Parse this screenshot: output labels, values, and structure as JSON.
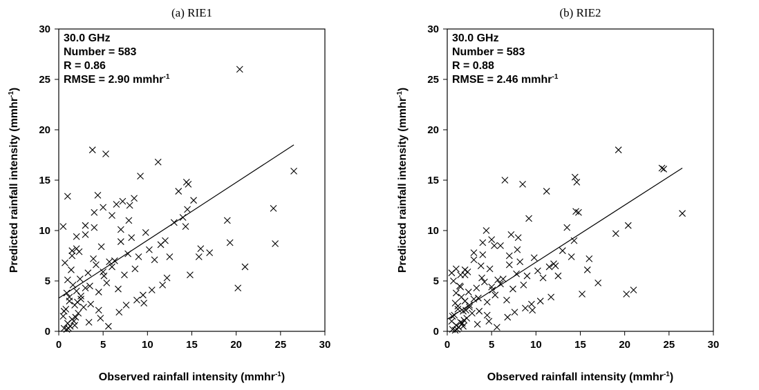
{
  "chart_data": [
    {
      "type": "scatter",
      "title": "(a) RIE1",
      "xlabel": {
        "main": "Observed rainfall intensity (mmhr",
        "sup": "-1",
        "end": ")"
      },
      "ylabel": {
        "main": "Predicted rainfall intensity (mmhr",
        "sup": "-1",
        "end": ")"
      },
      "xlim": [
        0,
        30
      ],
      "ylim": [
        0,
        30
      ],
      "xticks": [
        "0",
        "5",
        "10",
        "15",
        "20",
        "25",
        "30"
      ],
      "yticks": [
        "0",
        "5",
        "10",
        "15",
        "20",
        "25",
        "30"
      ],
      "annotation": {
        "line1": "30.0 GHz",
        "line2": "Number = 583",
        "line3": "R = 0.86",
        "line4_main": "RMSE = 2.90 mmhr",
        "line4_sup": "-1"
      },
      "fit_line": {
        "x": [
          0,
          26.5
        ],
        "y": [
          3.3,
          18.5
        ]
      },
      "x": [
        0.5,
        0.8,
        1.0,
        1.2,
        1.5,
        1.8,
        2.0,
        2.2,
        2.5,
        2.8,
        1.3,
        1.7,
        2.1,
        0.9,
        1.1,
        1.6,
        2.4,
        0.6,
        1.4,
        1.9,
        3.0,
        3.3,
        3.6,
        3.9,
        4.2,
        4.5,
        4.8,
        5.1,
        5.4,
        5.7,
        0.7,
        1.0,
        1.5,
        2.0,
        2.5,
        3.0,
        3.5,
        4.0,
        4.5,
        5.0,
        6.0,
        6.3,
        6.7,
        7.0,
        7.4,
        7.8,
        8.2,
        8.6,
        9.0,
        9.5,
        6.5,
        7.2,
        7.9,
        8.5,
        9.8,
        10.2,
        10.8,
        11.5,
        12.0,
        13.0,
        0.5,
        1.0,
        1.5,
        2.0,
        3.0,
        4.0,
        5.0,
        6.0,
        7.0,
        8.0,
        14.0,
        14.5,
        15.2,
        16.0,
        17.0,
        13.5,
        12.5,
        11.2,
        10.5,
        9.2,
        0.6,
        3.8,
        5.3,
        4.4,
        6.8,
        7.6,
        8.8,
        9.6,
        11.7,
        12.2,
        14.4,
        14.6,
        14.3,
        14.8,
        15.8,
        19.0,
        19.3,
        20.2,
        20.4,
        21.0,
        24.2,
        24.4,
        26.5,
        1.2,
        2.3,
        3.4,
        4.7,
        5.6,
        0.9,
        1.8
      ],
      "y": [
        1.5,
        2.2,
        0.8,
        3.0,
        1.2,
        2.6,
        4.0,
        1.8,
        3.5,
        2.4,
        0.5,
        1.0,
        2.9,
        3.8,
        0.3,
        4.6,
        5.2,
        2.0,
        6.1,
        1.4,
        4.3,
        5.8,
        2.7,
        7.2,
        6.6,
        3.9,
        8.4,
        5.5,
        4.8,
        6.9,
        6.8,
        5.1,
        7.5,
        8.2,
        3.2,
        9.6,
        4.5,
        10.3,
        2.1,
        5.9,
        6.4,
        7.0,
        4.2,
        8.9,
        5.6,
        7.7,
        9.3,
        6.2,
        7.4,
        3.6,
        12.6,
        12.9,
        11.0,
        13.2,
        9.8,
        8.1,
        7.1,
        8.6,
        9.0,
        10.8,
        10.4,
        13.4,
        8.0,
        9.4,
        10.5,
        11.8,
        12.3,
        11.5,
        10.1,
        12.5,
        11.3,
        12.1,
        13.0,
        8.2,
        7.8,
        13.9,
        7.4,
        16.8,
        4.1,
        15.4,
        0.3,
        18.0,
        17.6,
        13.5,
        1.9,
        2.6,
        3.1,
        2.8,
        4.6,
        5.3,
        14.8,
        14.6,
        10.4,
        5.6,
        7.4,
        11.0,
        8.8,
        4.3,
        26.0,
        6.4,
        12.2,
        8.7,
        15.9,
        3.4,
        7.9,
        0.9,
        1.3,
        0.5,
        0.2,
        0.6
      ]
    },
    {
      "type": "scatter",
      "title": "(b) RIE2",
      "xlabel": {
        "main": "Observed rainfall intensity (mmhr",
        "sup": "-1",
        "end": ")"
      },
      "ylabel": {
        "main": "Predicted rainfall intensity (mmhr",
        "sup": "-1",
        "end": ")"
      },
      "xlim": [
        0,
        30
      ],
      "ylim": [
        0,
        30
      ],
      "xticks": [
        "0",
        "5",
        "10",
        "15",
        "20",
        "25",
        "30"
      ],
      "yticks": [
        "0",
        "5",
        "10",
        "15",
        "20",
        "25",
        "30"
      ],
      "annotation": {
        "line1": "30.0 GHz",
        "line2": "Number = 583",
        "line3": "R = 0.88",
        "line4_main": "RMSE = 2.46 mmhr",
        "line4_sup": "-1"
      },
      "fit_line": {
        "x": [
          0,
          26.5
        ],
        "y": [
          1.2,
          16.2
        ]
      },
      "x": [
        0.5,
        0.8,
        1.0,
        1.2,
        1.5,
        1.8,
        2.0,
        2.2,
        2.5,
        2.8,
        1.3,
        1.7,
        2.1,
        0.9,
        1.1,
        1.6,
        2.4,
        0.6,
        1.4,
        1.9,
        3.0,
        3.3,
        3.6,
        3.9,
        4.2,
        4.5,
        4.8,
        5.1,
        5.4,
        5.7,
        0.7,
        1.0,
        1.5,
        2.0,
        2.5,
        3.0,
        3.5,
        4.0,
        4.5,
        5.0,
        6.0,
        6.3,
        6.7,
        7.0,
        7.4,
        7.8,
        8.2,
        8.6,
        9.0,
        9.5,
        6.5,
        7.2,
        7.9,
        8.5,
        9.8,
        10.2,
        10.8,
        11.5,
        12.0,
        13.0,
        0.5,
        1.0,
        1.5,
        2.0,
        3.0,
        4.0,
        5.0,
        6.0,
        7.0,
        8.0,
        14.0,
        14.5,
        15.2,
        16.0,
        17.0,
        13.5,
        12.5,
        11.2,
        10.5,
        9.2,
        0.6,
        3.8,
        5.3,
        4.4,
        6.8,
        7.6,
        8.8,
        9.6,
        11.7,
        12.2,
        14.4,
        14.6,
        14.3,
        14.8,
        15.8,
        19.0,
        19.3,
        20.2,
        20.4,
        21.0,
        24.2,
        24.4,
        26.5,
        1.2,
        2.3,
        3.4,
        4.7,
        5.6,
        0.9,
        1.8
      ],
      "y": [
        1.0,
        1.6,
        0.6,
        2.2,
        0.9,
        2.0,
        3.0,
        1.3,
        2.6,
        1.8,
        0.4,
        0.8,
        2.1,
        2.8,
        0.2,
        3.4,
        3.9,
        1.5,
        4.5,
        1.1,
        3.2,
        4.3,
        2.0,
        5.3,
        4.9,
        2.9,
        6.2,
        4.1,
        3.6,
        5.1,
        5.0,
        3.8,
        5.6,
        6.1,
        2.4,
        7.1,
        3.3,
        7.6,
        1.6,
        4.4,
        4.7,
        5.2,
        3.1,
        6.6,
        4.2,
        5.7,
        6.9,
        4.6,
        5.5,
        2.7,
        15.0,
        9.6,
        8.1,
        14.6,
        7.3,
        6.0,
        5.3,
        6.4,
        6.7,
        8.0,
        5.8,
        6.2,
        4.4,
        5.6,
        7.8,
        8.8,
        9.1,
        8.5,
        7.5,
        9.3,
        7.4,
        11.9,
        3.7,
        7.2,
        4.8,
        10.3,
        5.5,
        13.9,
        3.0,
        11.2,
        0.2,
        6.5,
        8.5,
        10.0,
        1.4,
        1.9,
        2.3,
        2.1,
        3.4,
        6.5,
        15.3,
        14.8,
        9.0,
        11.8,
        6.1,
        9.7,
        18.0,
        3.7,
        10.5,
        4.1,
        16.2,
        16.1,
        11.7,
        2.5,
        5.9,
        0.7,
        1.0,
        0.4,
        0.1,
        0.5
      ]
    }
  ]
}
